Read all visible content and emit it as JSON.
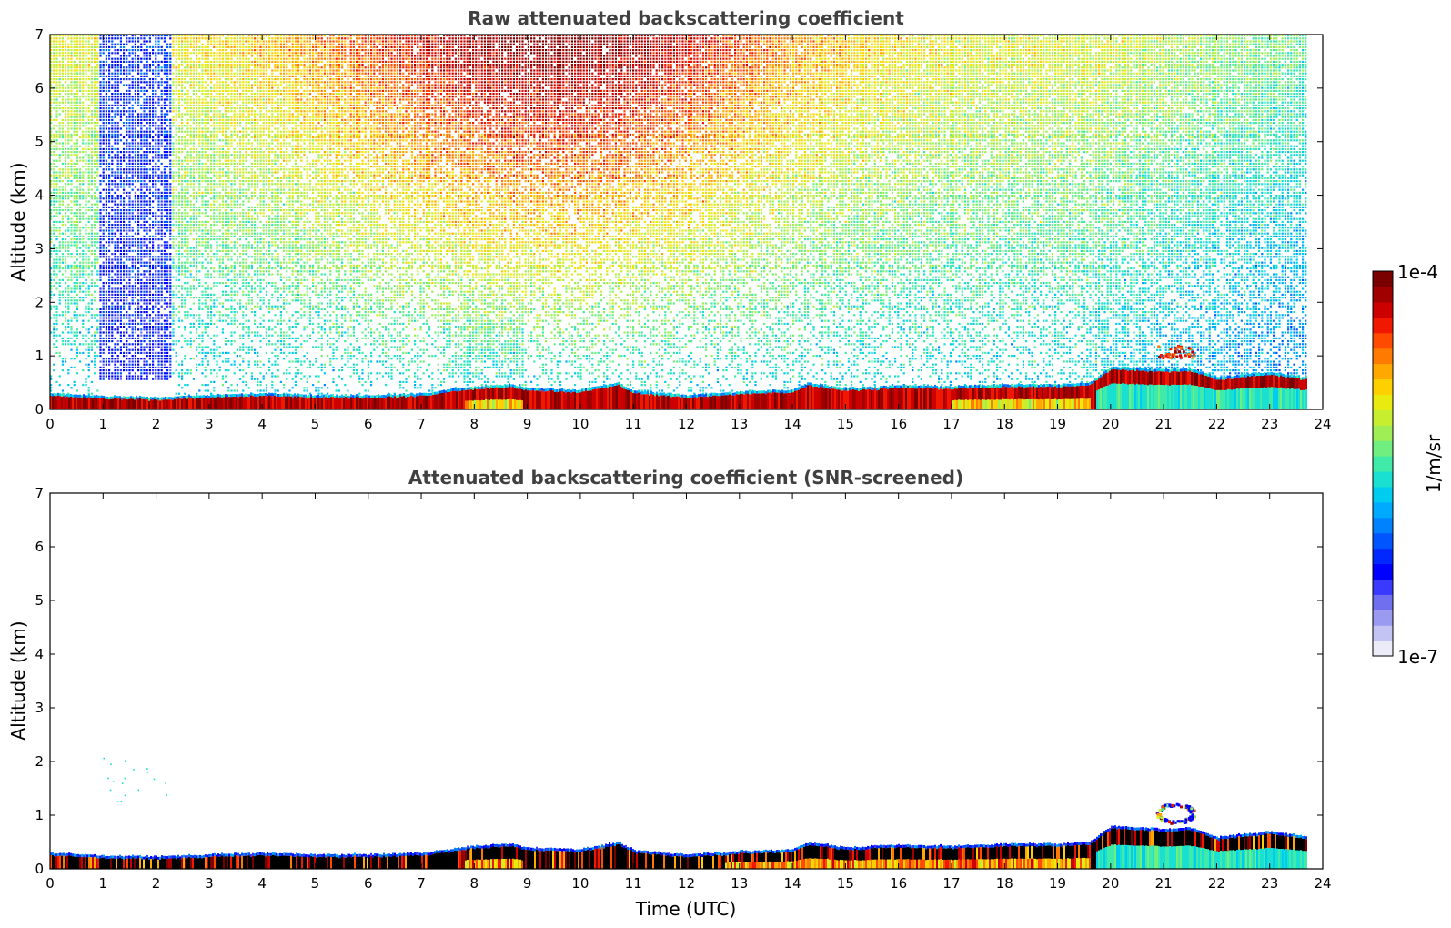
{
  "chart_data": [
    {
      "type": "heatmap",
      "title": "Raw attenuated backscattering coefficient",
      "xlabel": "",
      "ylabel": "Altitude (km)",
      "xlim": [
        0,
        24
      ],
      "ylim": [
        0,
        7
      ],
      "x_ticks": [
        "0",
        "1",
        "2",
        "3",
        "4",
        "5",
        "6",
        "7",
        "8",
        "9",
        "10",
        "11",
        "12",
        "13",
        "14",
        "15",
        "16",
        "17",
        "18",
        "19",
        "20",
        "21",
        "22",
        "23",
        "24"
      ],
      "y_ticks": [
        "0",
        "1",
        "2",
        "3",
        "4",
        "5",
        "6",
        "7"
      ],
      "data_end_time": 23.7,
      "layer_top_km": [
        [
          0,
          0.25
        ],
        [
          1,
          0.2
        ],
        [
          2,
          0.18
        ],
        [
          3,
          0.22
        ],
        [
          4,
          0.25
        ],
        [
          5,
          0.22
        ],
        [
          6,
          0.22
        ],
        [
          7,
          0.25
        ],
        [
          8,
          0.38
        ],
        [
          8.7,
          0.42
        ],
        [
          9,
          0.35
        ],
        [
          10,
          0.32
        ],
        [
          10.7,
          0.45
        ],
        [
          11,
          0.3
        ],
        [
          12,
          0.22
        ],
        [
          13,
          0.28
        ],
        [
          14,
          0.32
        ],
        [
          14.3,
          0.45
        ],
        [
          15,
          0.35
        ],
        [
          16,
          0.4
        ],
        [
          17,
          0.38
        ],
        [
          18,
          0.42
        ],
        [
          19,
          0.42
        ],
        [
          19.6,
          0.45
        ],
        [
          20,
          0.75
        ],
        [
          21,
          0.7
        ],
        [
          21.5,
          0.72
        ],
        [
          22,
          0.55
        ],
        [
          23,
          0.65
        ],
        [
          23.7,
          0.55
        ]
      ],
      "noise_plumes": [
        {
          "start": 0.9,
          "end": 2.3,
          "min_km": 0.5,
          "level": "low"
        },
        {
          "start": 7.4,
          "end": 8.9,
          "min_km": 0.6,
          "level": "mid"
        },
        {
          "start": 12.8,
          "end": 14.5,
          "min_km": 0.8,
          "level": "mid"
        },
        {
          "start": 19.5,
          "end": 23.7,
          "min_km": 0.6,
          "level": "low"
        }
      ],
      "cloud_feature": {
        "time": 21.2,
        "altitude_km": 1.1
      }
    },
    {
      "type": "heatmap",
      "title": "Attenuated backscattering coefficient (SNR-screened)",
      "xlabel": "Time (UTC)",
      "ylabel": "Altitude (km)",
      "xlim": [
        0,
        24
      ],
      "ylim": [
        0,
        7
      ],
      "x_ticks": [
        "0",
        "1",
        "2",
        "3",
        "4",
        "5",
        "6",
        "7",
        "8",
        "9",
        "10",
        "11",
        "12",
        "13",
        "14",
        "15",
        "16",
        "17",
        "18",
        "19",
        "20",
        "21",
        "22",
        "23",
        "24"
      ],
      "y_ticks": [
        "0",
        "1",
        "2",
        "3",
        "4",
        "5",
        "6",
        "7"
      ],
      "data_end_time": 23.7,
      "cloud_feature": {
        "time": 21.2,
        "altitude_km": 1.05
      }
    }
  ],
  "colorbar": {
    "label": "1/m/sr",
    "max_label": "1e-4",
    "min_label": "1e-7",
    "colors": [
      "#ecebf8",
      "#c3c3f4",
      "#9a9af0",
      "#6f6ff0",
      "#3a3aff",
      "#0000ff",
      "#0028ff",
      "#0055ff",
      "#0082ff",
      "#00aaff",
      "#00ccf0",
      "#19e0d0",
      "#40eaa8",
      "#70ee80",
      "#a0ee55",
      "#c8ee30",
      "#e8ea10",
      "#ffd000",
      "#ffa800",
      "#ff7a00",
      "#ff4a00",
      "#f01800",
      "#cc0000",
      "#a00000",
      "#7a0000"
    ]
  }
}
